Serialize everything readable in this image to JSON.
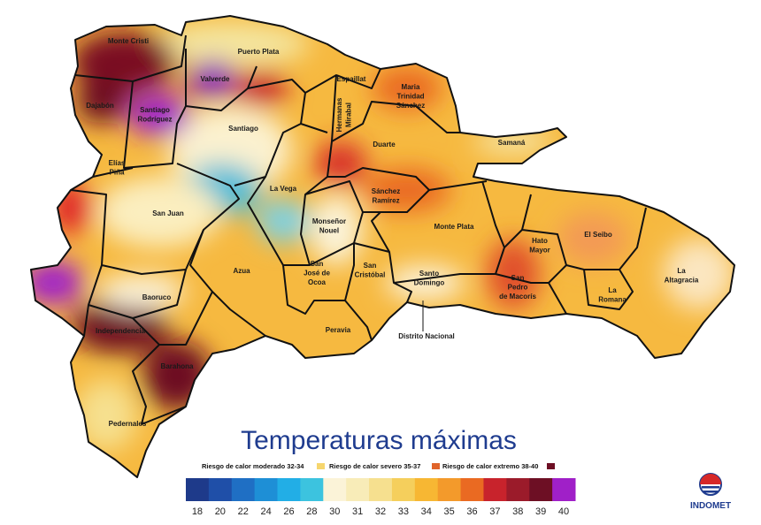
{
  "title": "Temperaturas máximas",
  "provinces": [
    {
      "lines": [
        "Monte Cristi"
      ]
    },
    {
      "lines": [
        "Puerto Plata"
      ]
    },
    {
      "lines": [
        "Valverde"
      ]
    },
    {
      "lines": [
        "Espaillat"
      ]
    },
    {
      "lines": [
        "Maria",
        "Trinidad",
        "Sánchez"
      ]
    },
    {
      "lines": [
        "Dajabón"
      ]
    },
    {
      "lines": [
        "Santiago",
        "Rodríguez"
      ]
    },
    {
      "lines": [
        "Hermanas",
        "Mirabal"
      ]
    },
    {
      "lines": [
        "Santiago"
      ]
    },
    {
      "lines": [
        "Duarte"
      ]
    },
    {
      "lines": [
        "Samaná"
      ]
    },
    {
      "lines": [
        "Elías",
        "Piña"
      ]
    },
    {
      "lines": [
        "La Vega"
      ]
    },
    {
      "lines": [
        "Sánchez",
        "Ramírez"
      ]
    },
    {
      "lines": [
        "San Juan"
      ]
    },
    {
      "lines": [
        "Monseñor",
        "Nouel"
      ]
    },
    {
      "lines": [
        "Monte Plata"
      ]
    },
    {
      "lines": [
        "Hato",
        "Mayor"
      ]
    },
    {
      "lines": [
        "El Seibo"
      ]
    },
    {
      "lines": [
        "Azua"
      ]
    },
    {
      "lines": [
        "San",
        "José de",
        "Ocoa"
      ]
    },
    {
      "lines": [
        "San",
        "Cristóbal"
      ]
    },
    {
      "lines": [
        "Santo",
        "Domingo"
      ]
    },
    {
      "lines": [
        "San",
        "Pedro",
        "de Macorís"
      ]
    },
    {
      "lines": [
        "La",
        "Altagracia"
      ]
    },
    {
      "lines": [
        "La",
        "Romana"
      ]
    },
    {
      "lines": [
        "Baoruco"
      ]
    },
    {
      "lines": [
        "Peravia"
      ]
    },
    {
      "lines": [
        "Distrito Nacional"
      ]
    },
    {
      "lines": [
        "Independencia"
      ]
    },
    {
      "lines": [
        "Barahona"
      ]
    },
    {
      "lines": [
        "Pedernales"
      ]
    }
  ],
  "risk_legend": [
    {
      "label": "Riesgo de calor moderado 32-34",
      "color": "#f6d66e"
    },
    {
      "label": "Riesgo de calor severo 35-37",
      "color": "#e0642a"
    },
    {
      "label": "Riesgo de calor extremo 38-40",
      "color": "#6d0f24"
    }
  ],
  "color_scale": [
    {
      "value": 18,
      "color": "#1e3a8a"
    },
    {
      "value": 20,
      "color": "#1f4fa8"
    },
    {
      "value": 22,
      "color": "#1f6fc4"
    },
    {
      "value": 24,
      "color": "#1e8fd6"
    },
    {
      "value": 26,
      "color": "#22aee6"
    },
    {
      "value": 28,
      "color": "#3cc3df"
    },
    {
      "value": 30,
      "color": "#fbf3d8"
    },
    {
      "value": 31,
      "color": "#f8ecb8"
    },
    {
      "value": 32,
      "color": "#f6e08f"
    },
    {
      "value": 33,
      "color": "#f5cf5c"
    },
    {
      "value": 34,
      "color": "#f7b733"
    },
    {
      "value": 35,
      "color": "#f39a2b"
    },
    {
      "value": 36,
      "color": "#ea6a22"
    },
    {
      "value": 37,
      "color": "#c8232c"
    },
    {
      "value": 38,
      "color": "#9b1b2a"
    },
    {
      "value": 39,
      "color": "#6d0f24"
    },
    {
      "value": 40,
      "color": "#a020c8"
    }
  ],
  "logo": "INDOMET"
}
